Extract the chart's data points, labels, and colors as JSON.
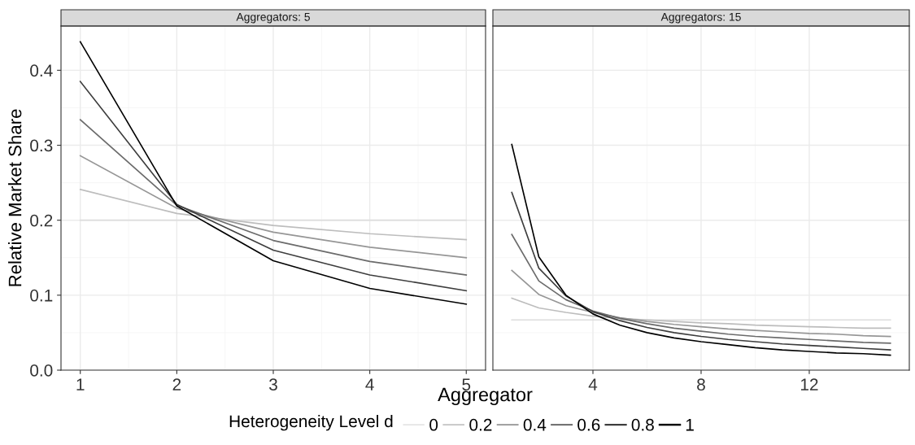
{
  "chart_data": [
    {
      "type": "line",
      "title": "Aggregators: 5",
      "xlabel": "Aggregator",
      "ylabel": "Relative Market Share",
      "legend_title": "Heterogeneity Level d",
      "legend": "bottom",
      "grid": true,
      "x": [
        1,
        2,
        3,
        4,
        5
      ],
      "xlim": [
        0.8,
        5.2
      ],
      "xticks": [
        1,
        2,
        3,
        4,
        5
      ],
      "ylim": [
        0,
        0.459
      ],
      "yticks": [
        {
          "value": 0,
          "label": "0.0"
        },
        0.1,
        0.2,
        0.3,
        0.4
      ],
      "series": [
        {
          "name": "0",
          "color": "#dddddd",
          "values": [
            0.2,
            0.2,
            0.2,
            0.2,
            0.2
          ]
        },
        {
          "name": "0.2",
          "color": "#bdbdbd",
          "values": [
            0.241,
            0.209,
            0.193,
            0.182,
            0.174
          ]
        },
        {
          "name": "0.4",
          "color": "#969696",
          "values": [
            0.286,
            0.216,
            0.184,
            0.164,
            0.15
          ]
        },
        {
          "name": "0.6",
          "color": "#6b6b6b",
          "values": [
            0.334,
            0.22,
            0.173,
            0.145,
            0.127
          ]
        },
        {
          "name": "0.8",
          "color": "#3d3d3d",
          "values": [
            0.385,
            0.221,
            0.16,
            0.127,
            0.106
          ]
        },
        {
          "name": "1",
          "color": "#000000",
          "values": [
            0.438,
            0.219,
            0.146,
            0.109,
            0.088
          ]
        }
      ]
    },
    {
      "type": "line",
      "title": "Aggregators: 15",
      "grid": true,
      "tick_labels": "x",
      "x": [
        1,
        2,
        3,
        4,
        5,
        6,
        7,
        8,
        9,
        10,
        11,
        12,
        13,
        14,
        15
      ],
      "xlim": [
        0.3,
        15.7
      ],
      "xticks": [
        4,
        8,
        12
      ],
      "ylim": [
        0,
        0.459
      ],
      "series": [
        {
          "name": "0",
          "color": "#dddddd",
          "values": [
            0.067,
            0.067,
            0.067,
            0.067,
            0.067,
            0.067,
            0.067,
            0.067,
            0.067,
            0.067,
            0.067,
            0.067,
            0.067,
            0.067,
            0.067
          ]
        },
        {
          "name": "0.2",
          "color": "#bdbdbd",
          "values": [
            0.096,
            0.083,
            0.077,
            0.072,
            0.069,
            0.067,
            0.065,
            0.063,
            0.062,
            0.06,
            0.059,
            0.058,
            0.057,
            0.056,
            0.056
          ]
        },
        {
          "name": "0.4",
          "color": "#969696",
          "values": [
            0.133,
            0.101,
            0.086,
            0.077,
            0.07,
            0.065,
            0.061,
            0.058,
            0.055,
            0.053,
            0.051,
            0.049,
            0.048,
            0.046,
            0.045
          ]
        },
        {
          "name": "0.6",
          "color": "#6b6b6b",
          "values": [
            0.181,
            0.119,
            0.094,
            0.079,
            0.069,
            0.062,
            0.056,
            0.052,
            0.048,
            0.045,
            0.043,
            0.041,
            0.039,
            0.037,
            0.036
          ]
        },
        {
          "name": "0.8",
          "color": "#3d3d3d",
          "values": [
            0.237,
            0.136,
            0.099,
            0.078,
            0.066,
            0.057,
            0.05,
            0.045,
            0.041,
            0.038,
            0.035,
            0.033,
            0.031,
            0.029,
            0.027
          ]
        },
        {
          "name": "1",
          "color": "#000000",
          "values": [
            0.301,
            0.151,
            0.1,
            0.075,
            0.06,
            0.05,
            0.043,
            0.038,
            0.034,
            0.03,
            0.027,
            0.025,
            0.023,
            0.022,
            0.02
          ]
        }
      ]
    }
  ]
}
